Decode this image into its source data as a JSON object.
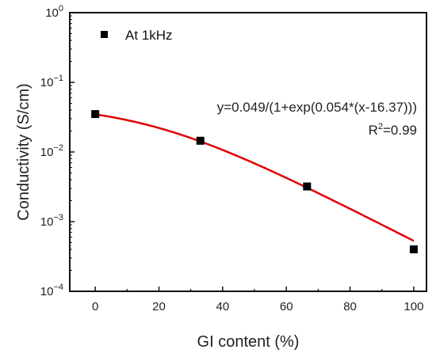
{
  "chart_data": {
    "type": "scatter",
    "xlabel": "GI content (%)",
    "ylabel": "Conductivity (S/cm)",
    "xlim": [
      -8,
      104
    ],
    "ylim": [
      0.0001,
      1
    ],
    "yscale": "log",
    "xticks": [
      0,
      20,
      40,
      60,
      80,
      100
    ],
    "yticks": [
      {
        "value": 0.0001,
        "base": "10",
        "exp": "−4"
      },
      {
        "value": 0.001,
        "base": "10",
        "exp": "−3"
      },
      {
        "value": 0.01,
        "base": "10",
        "exp": "−2"
      },
      {
        "value": 0.1,
        "base": "10",
        "exp": "−1"
      },
      {
        "value": 1,
        "base": "10",
        "exp": "0"
      }
    ],
    "grid": false,
    "legend_position": "top-left",
    "series": [
      {
        "name": "At 1kHz",
        "marker": "square",
        "color": "#000000",
        "x": [
          0,
          33,
          66.5,
          100
        ],
        "y": [
          0.035,
          0.0145,
          0.0032,
          0.0004
        ]
      }
    ],
    "fit": {
      "color": "#e00000",
      "a": 0.049,
      "b": 0.054,
      "c": 16.37,
      "x_range": [
        0,
        100
      ]
    },
    "annotations": {
      "equation": "y=0.049/(1+exp(0.054*(x-16.37)))",
      "r_squared_prefix": "R",
      "r_squared_sup": "2",
      "r_squared_value": "=0.99"
    }
  }
}
